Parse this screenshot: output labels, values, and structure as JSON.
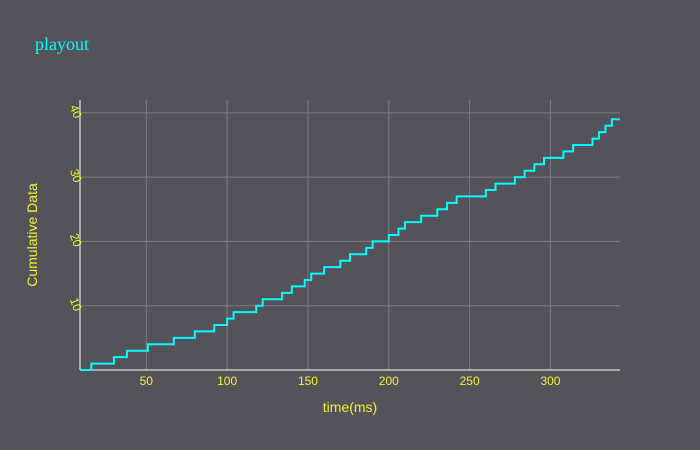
{
  "chart_data": {
    "type": "line",
    "title": "playout",
    "xlabel": "time(ms)",
    "ylabel": "Cumulative Data",
    "xlim": [
      9,
      343
    ],
    "ylim": [
      0,
      42
    ],
    "xticks": [
      50,
      100,
      150,
      200,
      250,
      300
    ],
    "yticks": [
      10,
      20,
      30,
      40
    ],
    "grid": true,
    "line_shape": "step",
    "series": [
      {
        "x": [
          9,
          16,
          30,
          34,
          38,
          46,
          51,
          60,
          67,
          72,
          80,
          88,
          92,
          96,
          100,
          104,
          112,
          118,
          122,
          130,
          134,
          140,
          144,
          148,
          152,
          156,
          160,
          166,
          170,
          176,
          180,
          186,
          190,
          196,
          200,
          206,
          210,
          216,
          220,
          226,
          230,
          236,
          242,
          248,
          254,
          260,
          266,
          272,
          278,
          284,
          290,
          296,
          302,
          308,
          314,
          320,
          326,
          330,
          334,
          338,
          343
        ],
        "y": [
          0,
          1,
          2,
          2,
          3,
          3,
          4,
          4,
          5,
          5,
          6,
          6,
          7,
          7,
          8,
          9,
          9,
          10,
          11,
          11,
          12,
          13,
          13,
          14,
          15,
          15,
          16,
          16,
          17,
          18,
          18,
          19,
          20,
          20,
          21,
          22,
          23,
          23,
          24,
          24,
          25,
          26,
          27,
          27,
          27,
          28,
          29,
          29,
          30,
          31,
          32,
          33,
          33,
          34,
          35,
          35,
          36,
          37,
          38,
          39,
          39
        ]
      }
    ]
  },
  "colors": {
    "background": "#545359",
    "grid": "#7d7c80",
    "line": "#00ffff",
    "title": "#00ffff",
    "axis_text": "#f2f230",
    "axis_line": "#ffffff"
  }
}
